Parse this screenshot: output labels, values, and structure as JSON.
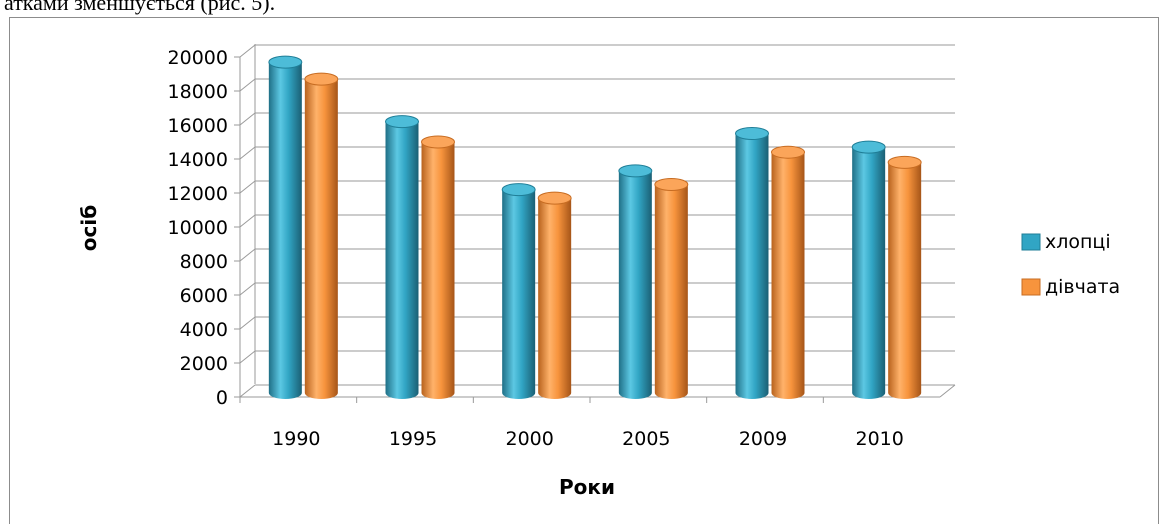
{
  "page": {
    "caption": "атками зменшується (рис. 5)."
  },
  "chart_data": {
    "type": "bar",
    "subtype": "3d-cylinder",
    "categories": [
      "1990",
      "1995",
      "2000",
      "2005",
      "2009",
      "2010"
    ],
    "series": [
      {
        "name": "хлопці",
        "values": [
          19700,
          16200,
          12200,
          13300,
          15500,
          14700
        ],
        "color": "#31a5c4"
      },
      {
        "name": "дівчата",
        "values": [
          18700,
          15000,
          11700,
          12500,
          14400,
          13800
        ],
        "color": "#f7943d"
      }
    ],
    "xlabel": "Роки",
    "ylabel": "осіб",
    "ylim": [
      0,
      20000
    ],
    "ytick_step": 2000,
    "yticks": [
      "0",
      "2000",
      "4000",
      "6000",
      "8000",
      "10000",
      "12000",
      "14000",
      "16000",
      "18000",
      "20000"
    ],
    "grid": true,
    "legend": "right"
  }
}
